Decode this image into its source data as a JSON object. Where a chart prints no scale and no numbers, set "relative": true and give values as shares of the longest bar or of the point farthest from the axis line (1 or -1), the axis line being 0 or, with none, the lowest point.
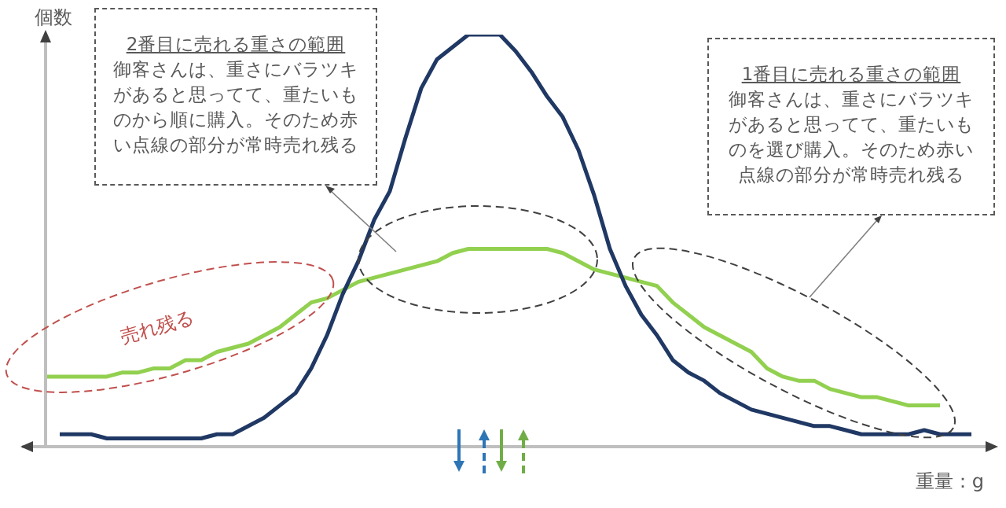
{
  "chart_data": {
    "type": "line",
    "relative": true,
    "xlabel": "重量：g",
    "ylabel": "個数",
    "categories": [
      null,
      null,
      null,
      null,
      null,
      null,
      null,
      null,
      null,
      null,
      null,
      null,
      null,
      null,
      null,
      null,
      null,
      null,
      null,
      null,
      null,
      null,
      null,
      null,
      null,
      null,
      null,
      null,
      null,
      null,
      null,
      null,
      null,
      null,
      null,
      null,
      null,
      null,
      null,
      null,
      null,
      null,
      null,
      null,
      null,
      null,
      null,
      null,
      null,
      null,
      null,
      null,
      null,
      null,
      null,
      null,
      null,
      null,
      null,
      null
    ],
    "series": [
      {
        "color": "#203864",
        "values": [
          null,
          0.03,
          0.03,
          0.03,
          0.02,
          0.02,
          0.02,
          0.02,
          0.02,
          0.02,
          0.02,
          0.03,
          0.03,
          0.05,
          0.07,
          0.1,
          0.13,
          0.19,
          0.27,
          0.37,
          0.45,
          0.55,
          0.62,
          0.75,
          0.87,
          0.94,
          0.97,
          1,
          1,
          1,
          0.96,
          0.91,
          0.85,
          0.8,
          0.72,
          0.61,
          0.48,
          0.39,
          0.32,
          0.27,
          0.21,
          0.18,
          0.16,
          0.13,
          0.11,
          0.09,
          0.08,
          0.07,
          0.06,
          0.05,
          0.05,
          0.04,
          0.03,
          0.03,
          0.03,
          0.03,
          0.04,
          0.03,
          0.03,
          0.03
        ]
      },
      {
        "color": "#92d050",
        "values": [
          0.17,
          0.17,
          0.17,
          0.17,
          0.17,
          0.18,
          0.18,
          0.19,
          0.19,
          0.21,
          0.21,
          0.23,
          0.24,
          0.25,
          0.27,
          0.29,
          0.32,
          0.35,
          0.36,
          0.38,
          0.4,
          0.41,
          0.42,
          0.43,
          0.44,
          0.45,
          0.47,
          0.48,
          0.48,
          0.48,
          0.48,
          0.48,
          0.48,
          0.47,
          0.45,
          0.43,
          0.42,
          0.41,
          0.4,
          0.39,
          0.35,
          0.32,
          0.29,
          0.27,
          0.25,
          0.23,
          0.19,
          0.17,
          0.16,
          0.16,
          0.14,
          0.13,
          0.12,
          0.12,
          0.11,
          0.1,
          0.1,
          0.1,
          null,
          null
        ]
      }
    ],
    "annotations": [
      "2番目に売れる重さの範囲",
      "御客さんは、重さにバラツキがあると思ってて、重たいものから順に購入。そのため赤い点線の部分が常時売れ残る",
      "1番目に売れる重さの範囲",
      "御客さんは、重さにバラツキがあると思ってて、重たいものを選び購入。そのため赤い点線の部分が常時売れ残る",
      "売れ残る"
    ]
  }
}
